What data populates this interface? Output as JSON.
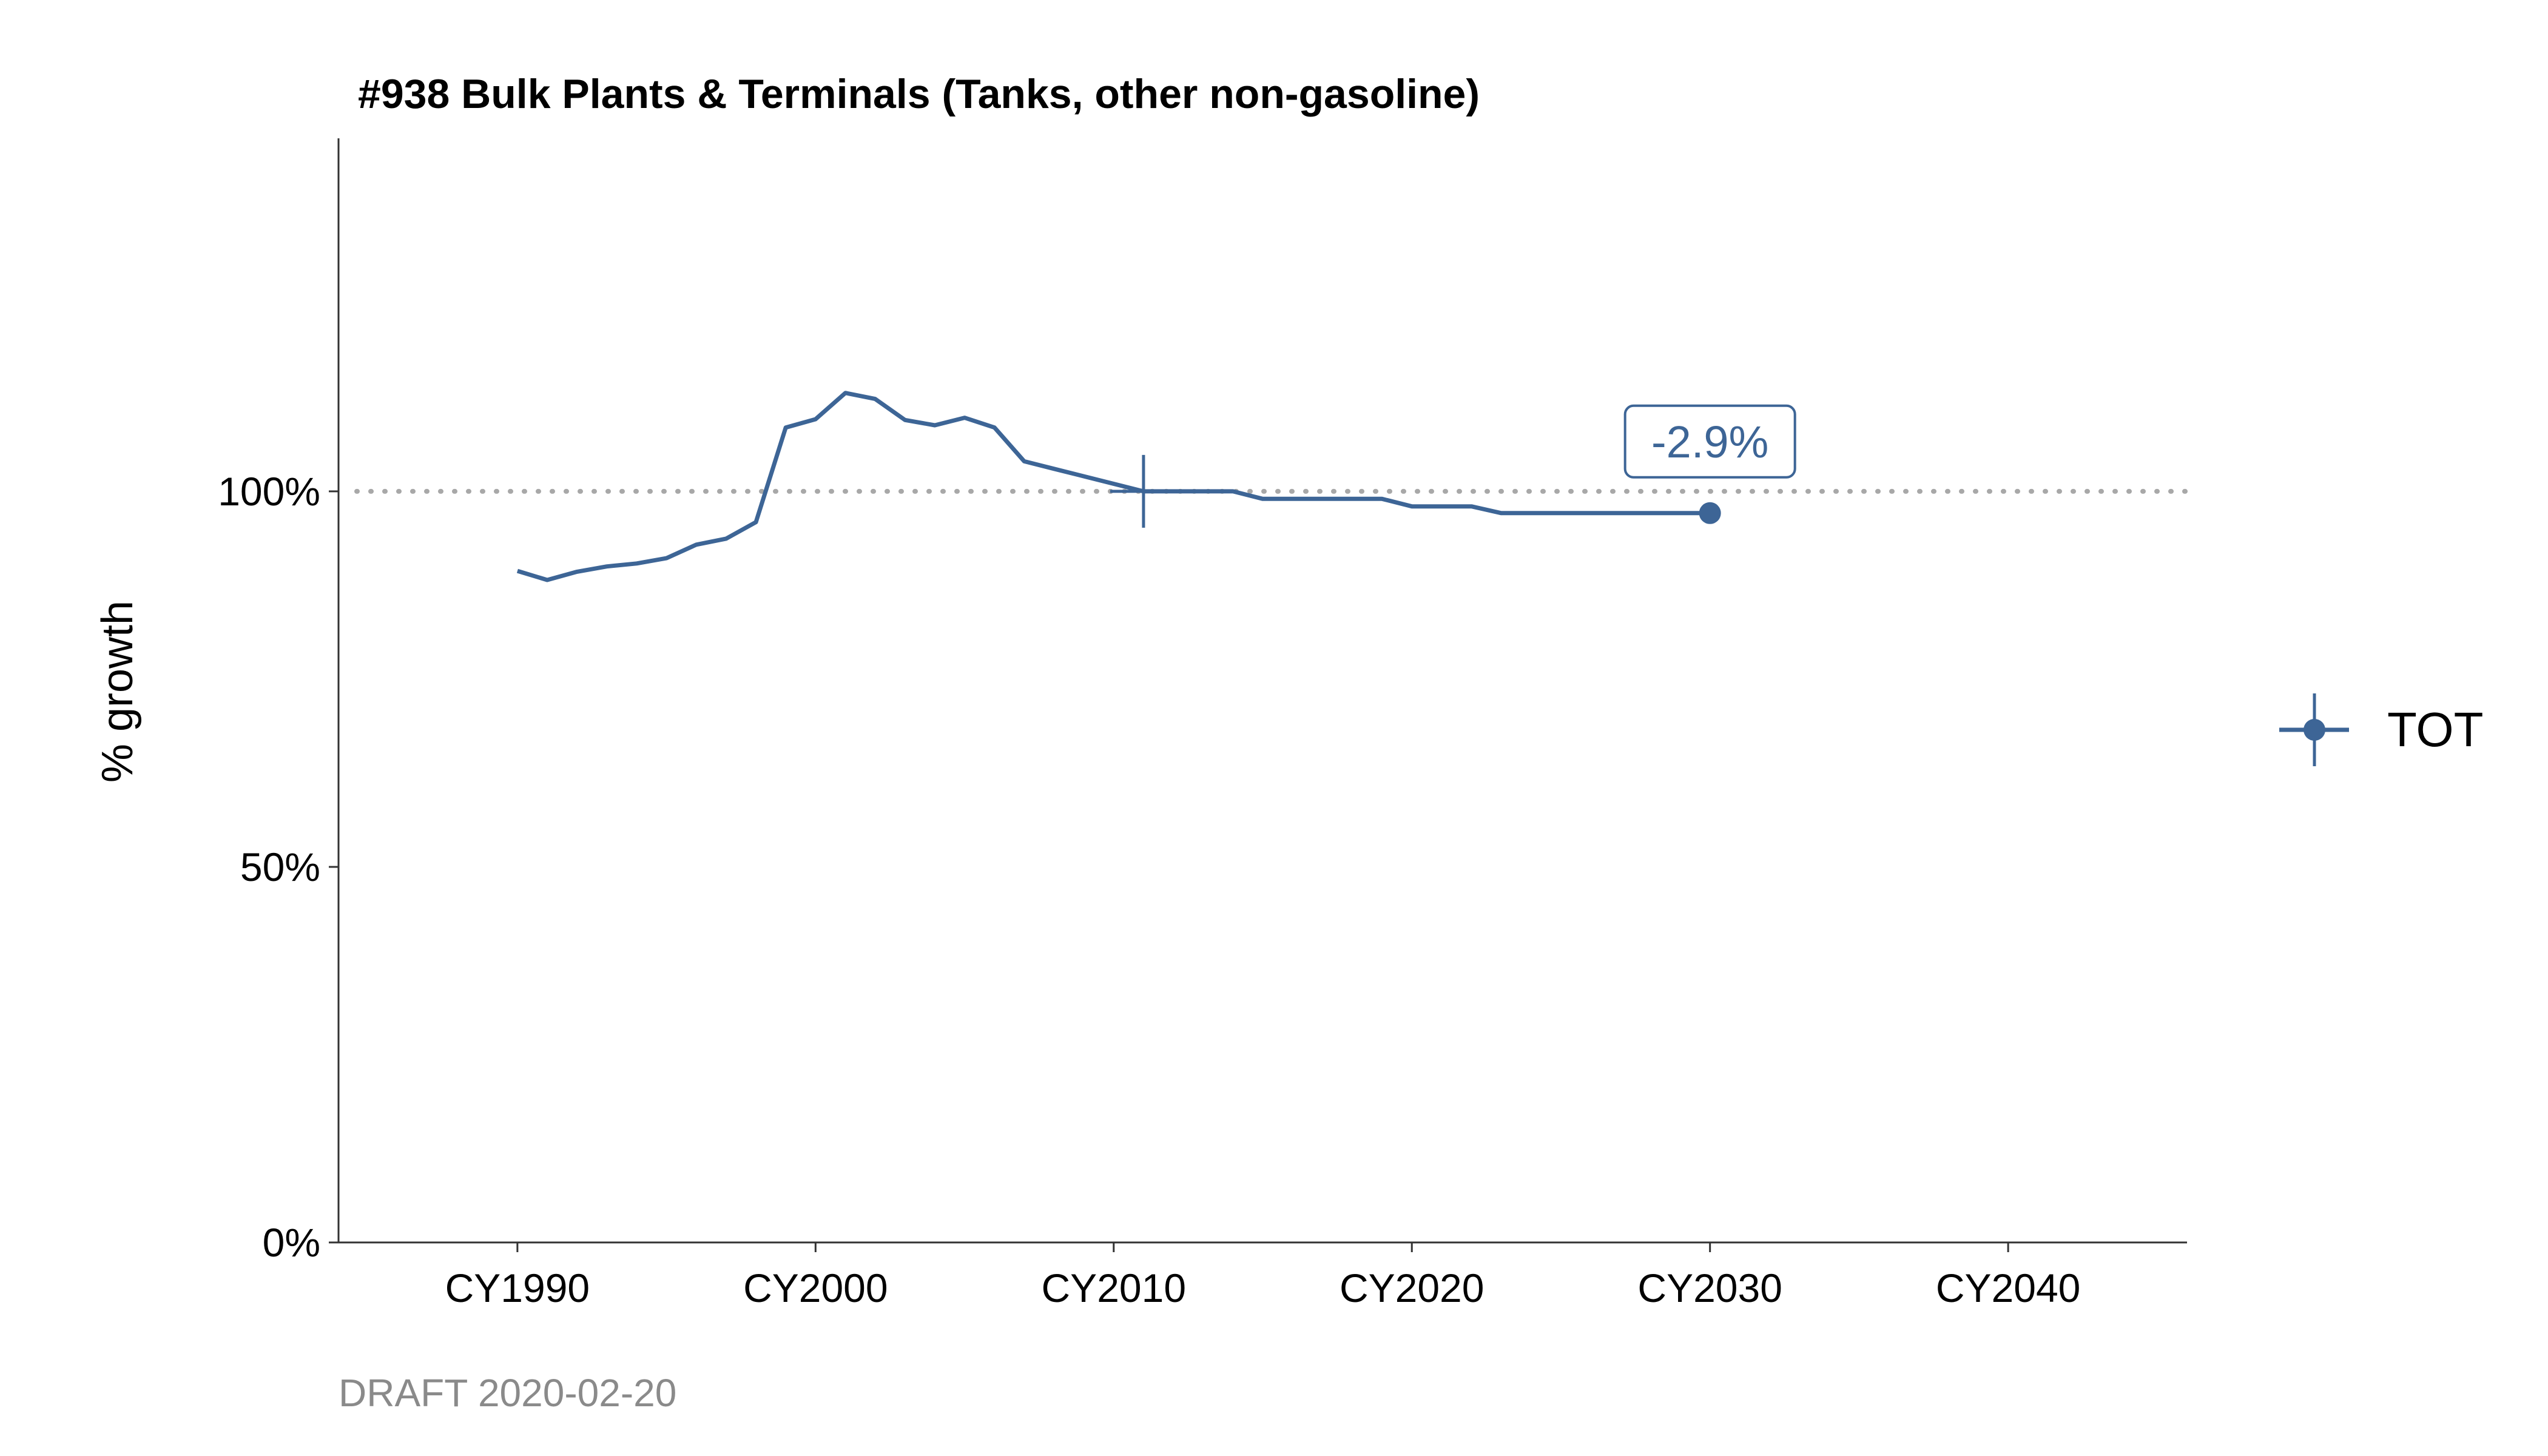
{
  "chart_data": {
    "type": "line",
    "title": "#938 Bulk Plants & Terminals (Tanks, other non-gasoline)",
    "xlabel": "",
    "ylabel": "% growth",
    "caption": "DRAFT 2020-02-20",
    "xlim": [
      1984,
      2046
    ],
    "ylim": [
      0,
      1.47
    ],
    "x_ticks": [
      {
        "value": 1990,
        "label": "CY1990"
      },
      {
        "value": 2000,
        "label": "CY2000"
      },
      {
        "value": 2010,
        "label": "CY2010"
      },
      {
        "value": 2020,
        "label": "CY2020"
      },
      {
        "value": 2030,
        "label": "CY2030"
      },
      {
        "value": 2040,
        "label": "CY2040"
      }
    ],
    "y_ticks": [
      {
        "value": 0,
        "label": "0%"
      },
      {
        "value": 0.5,
        "label": "50%"
      },
      {
        "value": 1.0,
        "label": "100%"
      }
    ],
    "reference_line": {
      "y": 1.0,
      "style": "dotted"
    },
    "base_year_marker": {
      "x": 2011,
      "y": 1.0
    },
    "end_point": {
      "x": 2030,
      "y": 0.971
    },
    "annotation": {
      "x": 2030,
      "y": 0.971,
      "text": "-2.9%"
    },
    "grid": false,
    "legend_position": "right",
    "color": "#3d6596",
    "series": [
      {
        "name": "TOT",
        "x": [
          1990,
          1991,
          1992,
          1993,
          1994,
          1995,
          1996,
          1997,
          1998,
          1999,
          2000,
          2001,
          2002,
          2003,
          2004,
          2005,
          2006,
          2007,
          2008,
          2009,
          2010,
          2011,
          2012,
          2013,
          2014,
          2015,
          2016,
          2017,
          2018,
          2019,
          2020,
          2021,
          2022,
          2023,
          2024,
          2025,
          2026,
          2027,
          2028,
          2029,
          2030
        ],
        "values": [
          0.894,
          0.882,
          0.893,
          0.9,
          0.904,
          0.911,
          0.929,
          0.937,
          0.959,
          1.085,
          1.096,
          1.131,
          1.123,
          1.095,
          1.088,
          1.098,
          1.085,
          1.04,
          1.03,
          1.02,
          1.01,
          1.0,
          1.0,
          1.0,
          1.0,
          0.99,
          0.99,
          0.99,
          0.99,
          0.99,
          0.98,
          0.98,
          0.98,
          0.971,
          0.971,
          0.971,
          0.971,
          0.971,
          0.971,
          0.971,
          0.971
        ]
      }
    ]
  }
}
